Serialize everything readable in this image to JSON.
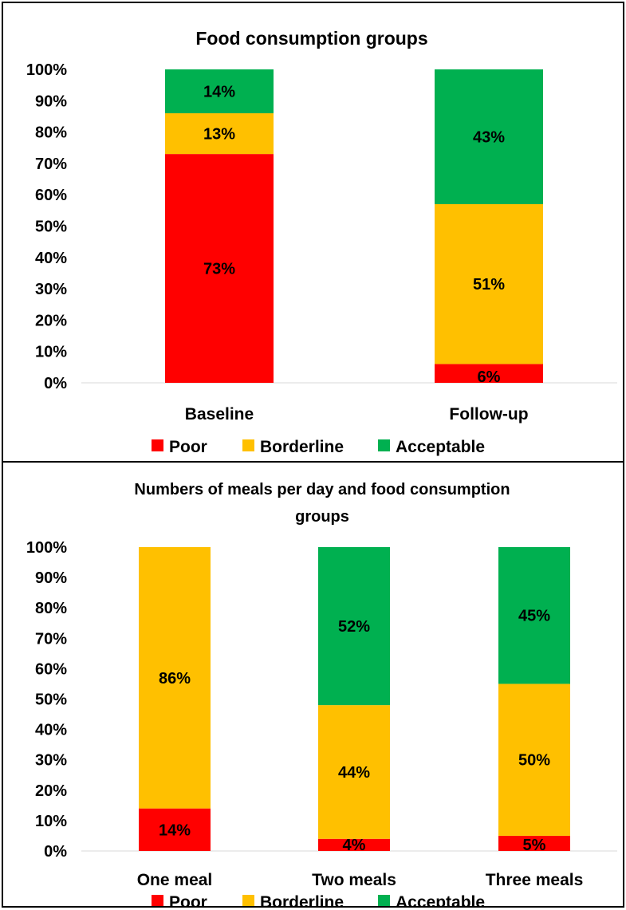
{
  "colors": {
    "Poor": "#ff0000",
    "Borderline": "#ffc000",
    "Acceptable": "#00b050"
  },
  "chart_data": [
    {
      "type": "bar",
      "stacked": true,
      "title": "Food consumption groups",
      "categories": [
        "Baseline",
        "Follow-up"
      ],
      "series": [
        {
          "name": "Poor",
          "values": [
            73,
            6
          ]
        },
        {
          "name": "Borderline",
          "values": [
            13,
            51
          ]
        },
        {
          "name": "Acceptable",
          "values": [
            14,
            43
          ]
        }
      ],
      "data_labels": {
        "Poor": [
          "73%",
          "6%"
        ],
        "Borderline": [
          "13%",
          "51%"
        ],
        "Acceptable": [
          "14%",
          "43%"
        ]
      },
      "y_ticks": [
        "0%",
        "10%",
        "20%",
        "30%",
        "40%",
        "50%",
        "60%",
        "70%",
        "80%",
        "90%",
        "100%"
      ],
      "ylim": [
        0,
        100
      ],
      "grid": false,
      "legend": "bottom"
    },
    {
      "type": "bar",
      "stacked": true,
      "title_lines": [
        "Numbers of meals per day and food consumption",
        "groups"
      ],
      "categories": [
        "One meal",
        "Two meals",
        "Three meals"
      ],
      "series": [
        {
          "name": "Poor",
          "values": [
            14,
            4,
            5
          ]
        },
        {
          "name": "Borderline",
          "values": [
            86,
            44,
            50
          ]
        },
        {
          "name": "Acceptable",
          "values": [
            0,
            52,
            45
          ]
        }
      ],
      "data_labels": {
        "Poor": [
          "14%",
          "4%",
          "5%"
        ],
        "Borderline": [
          "86%",
          "44%",
          "50%"
        ],
        "Acceptable": [
          "",
          "52%",
          "45%"
        ]
      },
      "y_ticks": [
        "0%",
        "10%",
        "20%",
        "30%",
        "40%",
        "50%",
        "60%",
        "70%",
        "80%",
        "90%",
        "100%"
      ],
      "ylim": [
        0,
        100
      ],
      "grid": false,
      "legend": "bottom"
    }
  ]
}
